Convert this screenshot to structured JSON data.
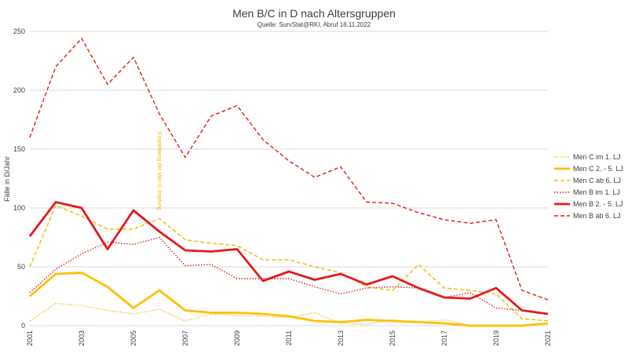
{
  "chart_data": {
    "type": "line",
    "title": "Men B/C in D nach Altersgruppen",
    "subtitle": "Quelle: SurvStat@RKI, Abruf 16.11.2022",
    "ylabel": "Fälle in D/Jahr",
    "xlabel": "",
    "ylim": [
      0,
      250
    ],
    "yticks": [
      0,
      50,
      100,
      150,
      200,
      250
    ],
    "xlim": [
      2001,
      2021
    ],
    "xticks": [
      "2001",
      "2003",
      "2005",
      "2007",
      "2009",
      "2011",
      "2013",
      "2015",
      "2017",
      "2019",
      "2021"
    ],
    "grid": "horizontal",
    "legend_position": "right",
    "x": [
      2001,
      2002,
      2003,
      2004,
      2005,
      2006,
      2007,
      2008,
      2009,
      2010,
      2011,
      2012,
      2013,
      2014,
      2015,
      2016,
      2017,
      2018,
      2019,
      2020,
      2021
    ],
    "series": [
      {
        "name": "Men C im 1. LJ",
        "color": "#f5b800",
        "style": "dotted",
        "width": 1.2,
        "values": [
          4,
          19,
          17,
          13,
          10,
          14,
          4,
          10,
          9,
          8,
          7,
          11,
          2,
          1,
          5,
          3,
          5,
          0,
          0,
          0,
          2
        ]
      },
      {
        "name": "Men C 2. - 5. LJ",
        "color": "#ffc000",
        "style": "solid",
        "width": 2.8,
        "values": [
          25,
          44,
          45,
          33,
          15,
          30,
          13,
          11,
          11,
          10,
          8,
          4,
          3,
          5,
          4,
          3,
          2,
          0,
          0,
          0,
          2
        ]
      },
      {
        "name": "Men C ab 6. LJ",
        "color": "#f5b800",
        "style": "dashed",
        "width": 1.4,
        "values": [
          50,
          102,
          93,
          82,
          82,
          91,
          73,
          70,
          68,
          56,
          56,
          50,
          45,
          33,
          30,
          52,
          32,
          30,
          27,
          6,
          4
        ]
      },
      {
        "name": "Men B im 1. LJ",
        "color": "#e31a1c",
        "style": "dotted",
        "width": 1.4,
        "values": [
          28,
          48,
          61,
          71,
          69,
          75,
          51,
          52,
          40,
          40,
          40,
          33,
          27,
          32,
          33,
          32,
          24,
          28,
          15,
          13,
          10
        ]
      },
      {
        "name": "Men B 2. - 5. LJ",
        "color": "#e31a1c",
        "style": "solid",
        "width": 2.8,
        "values": [
          76,
          105,
          100,
          65,
          98,
          80,
          64,
          63,
          65,
          38,
          46,
          39,
          44,
          35,
          42,
          32,
          24,
          23,
          32,
          13,
          10
        ]
      },
      {
        "name": "Men B ab 6. LJ",
        "color": "#e31a1c",
        "style": "dashed",
        "width": 1.4,
        "values": [
          160,
          220,
          244,
          205,
          228,
          180,
          143,
          178,
          187,
          158,
          140,
          126,
          135,
          105,
          104,
          96,
          90,
          87,
          90,
          30,
          22
        ]
      }
    ],
    "annotations": [
      {
        "text": "Empfehlung der Men C-Impfung",
        "x": 2006,
        "color": "#f5b800"
      }
    ]
  }
}
